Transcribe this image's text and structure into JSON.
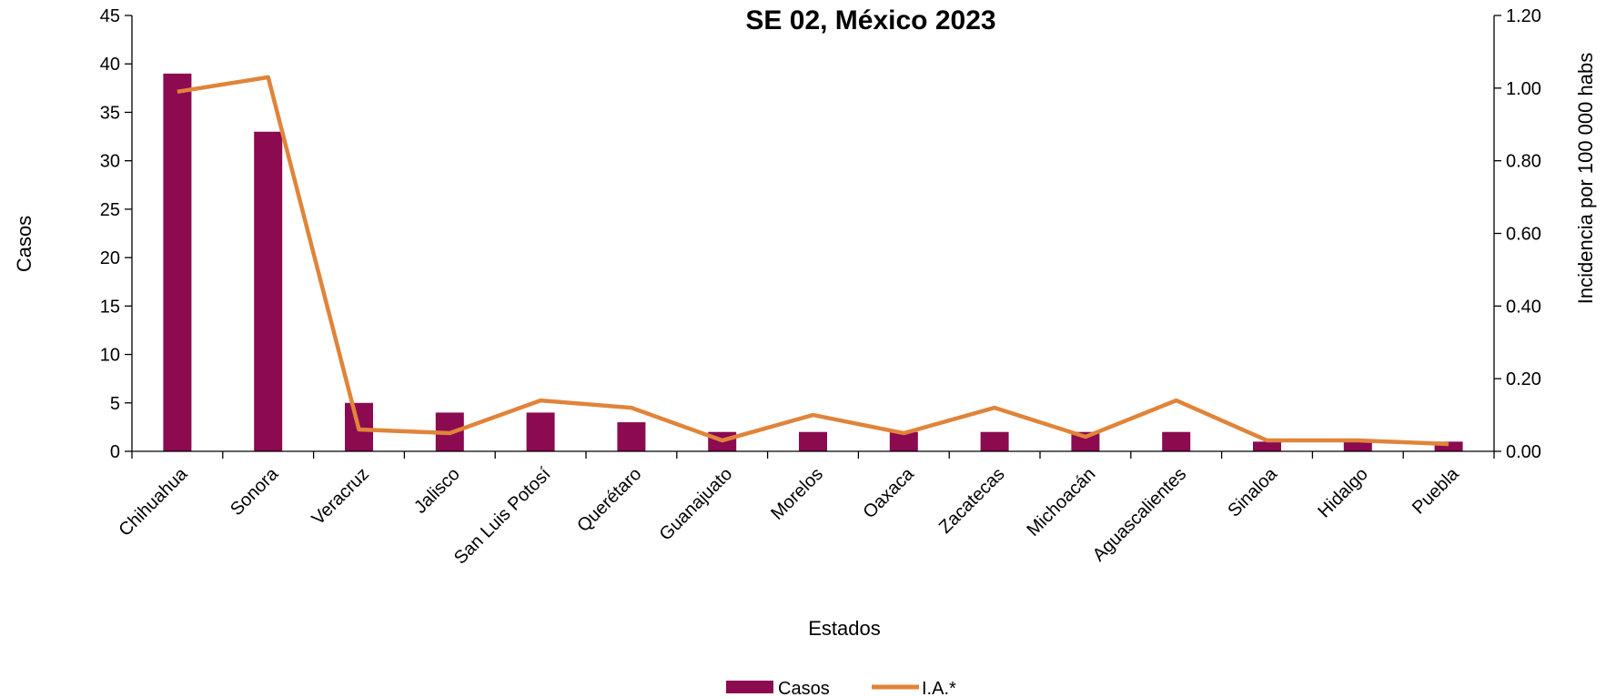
{
  "chart_data": {
    "type": "bar",
    "title": "SE 02, México 2023",
    "xlabel": "Estados",
    "ylabel": "Casos",
    "y2label": "Incidencia por 100 000 habs",
    "ylim": [
      0,
      45
    ],
    "y2lim": [
      0,
      1.2
    ],
    "yticks": [
      "0",
      "5",
      "10",
      "15",
      "20",
      "25",
      "30",
      "35",
      "40",
      "45"
    ],
    "y2ticks": [
      "0.00",
      "0.20",
      "0.40",
      "0.60",
      "0.80",
      "1.00",
      "1.20"
    ],
    "categories": [
      "Chihuahua",
      "Sonora",
      "Veracruz",
      "Jalisco",
      "San Luis Potosí",
      "Querétaro",
      "Guanajuato",
      "Morelos",
      "Oaxaca",
      "Zacatecas",
      "Michoacán",
      "Aguascalientes",
      "Sinaloa",
      "Hidalgo",
      "Puebla"
    ],
    "series": [
      {
        "name": "Casos",
        "type": "bar",
        "axis": "left",
        "color": "#8B0A50",
        "values": [
          39,
          33,
          5,
          4,
          4,
          3,
          2,
          2,
          2,
          2,
          2,
          2,
          1,
          1,
          1
        ]
      },
      {
        "name": "I.A.*",
        "type": "line",
        "axis": "right",
        "color": "#E0843A",
        "values": [
          0.99,
          1.03,
          0.06,
          0.05,
          0.14,
          0.12,
          0.03,
          0.1,
          0.05,
          0.12,
          0.04,
          0.14,
          0.03,
          0.03,
          0.02
        ]
      }
    ],
    "grid": false,
    "legend_position": "bottom-center"
  }
}
